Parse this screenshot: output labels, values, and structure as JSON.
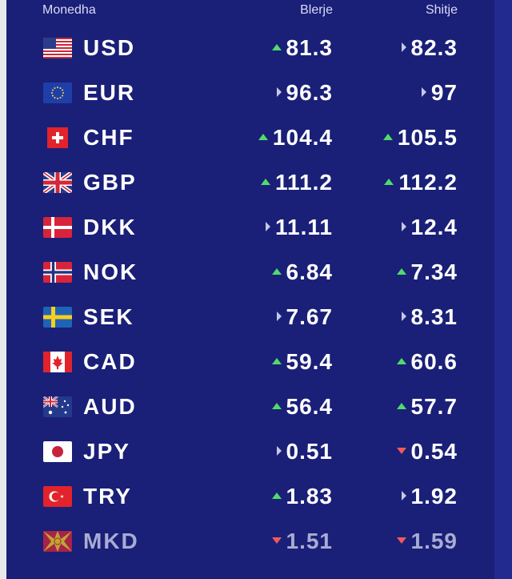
{
  "header": {
    "currency": "Monedha",
    "buy": "Blerje",
    "sell": "Shitje"
  },
  "rates": [
    {
      "code": "USD",
      "flag": "us-flag-icon",
      "buy": "81.3",
      "buy_trend": "up",
      "sell": "82.3",
      "sell_trend": "same"
    },
    {
      "code": "EUR",
      "flag": "eu-flag-icon",
      "buy": "96.3",
      "buy_trend": "same",
      "sell": "97",
      "sell_trend": "same"
    },
    {
      "code": "CHF",
      "flag": "ch-flag-icon",
      "buy": "104.4",
      "buy_trend": "up",
      "sell": "105.5",
      "sell_trend": "up"
    },
    {
      "code": "GBP",
      "flag": "gb-flag-icon",
      "buy": "111.2",
      "buy_trend": "up",
      "sell": "112.2",
      "sell_trend": "up"
    },
    {
      "code": "DKK",
      "flag": "dk-flag-icon",
      "buy": "11.11",
      "buy_trend": "same",
      "sell": "12.4",
      "sell_trend": "same"
    },
    {
      "code": "NOK",
      "flag": "no-flag-icon",
      "buy": "6.84",
      "buy_trend": "up",
      "sell": "7.34",
      "sell_trend": "up"
    },
    {
      "code": "SEK",
      "flag": "se-flag-icon",
      "buy": "7.67",
      "buy_trend": "same",
      "sell": "8.31",
      "sell_trend": "same"
    },
    {
      "code": "CAD",
      "flag": "ca-flag-icon",
      "buy": "59.4",
      "buy_trend": "up",
      "sell": "60.6",
      "sell_trend": "up"
    },
    {
      "code": "AUD",
      "flag": "au-flag-icon",
      "buy": "56.4",
      "buy_trend": "up",
      "sell": "57.7",
      "sell_trend": "up"
    },
    {
      "code": "JPY",
      "flag": "jp-flag-icon",
      "buy": "0.51",
      "buy_trend": "same",
      "sell": "0.54",
      "sell_trend": "down"
    },
    {
      "code": "TRY",
      "flag": "tr-flag-icon",
      "buy": "1.83",
      "buy_trend": "up",
      "sell": "1.92",
      "sell_trend": "same"
    },
    {
      "code": "MKD",
      "flag": "mk-flag-icon",
      "buy": "1.51",
      "buy_trend": "down",
      "sell": "1.59",
      "sell_trend": "down"
    }
  ],
  "colors": {
    "panel": "#1a1f78",
    "trend_up": "#4fdc6a",
    "trend_down": "#f05a5a",
    "trend_same": "#c5c8e6"
  }
}
